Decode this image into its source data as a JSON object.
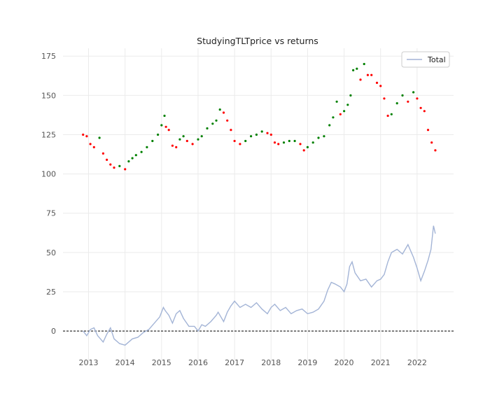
{
  "chart_data": {
    "type": "line",
    "title": "StudyingTLTprice vs returns",
    "xlabel": "",
    "ylabel": "",
    "x_ticks": [
      "2013",
      "2014",
      "2015",
      "2016",
      "2017",
      "2018",
      "2019",
      "2020",
      "2021",
      "2022"
    ],
    "y_ticks": [
      0,
      25,
      50,
      75,
      100,
      125,
      150,
      175
    ],
    "xlim": [
      2012.3,
      2023.0
    ],
    "ylim": [
      -20,
      180
    ],
    "grid": true,
    "legend": {
      "position": "top-right",
      "entries": [
        "Total"
      ]
    },
    "reference_line": {
      "y": 0,
      "style": "dashed",
      "color": "#000000"
    },
    "colors": {
      "total": "#a3b4d6",
      "up": "#008000",
      "down": "#ff0000"
    },
    "price_series": {
      "x": [
        2012.85,
        2012.95,
        2013.05,
        2013.15,
        2013.3,
        2013.4,
        2013.5,
        2013.6,
        2013.7,
        2013.85,
        2014.0,
        2014.1,
        2014.2,
        2014.3,
        2014.45,
        2014.6,
        2014.75,
        2014.9,
        2015.0,
        2015.08,
        2015.12,
        2015.2,
        2015.3,
        2015.4,
        2015.5,
        2015.6,
        2015.7,
        2015.85,
        2016.0,
        2016.1,
        2016.25,
        2016.4,
        2016.5,
        2016.6,
        2016.7,
        2016.8,
        2016.9,
        2017.0,
        2017.15,
        2017.3,
        2017.45,
        2017.6,
        2017.75,
        2017.9,
        2018.0,
        2018.1,
        2018.2,
        2018.35,
        2018.5,
        2018.65,
        2018.8,
        2018.9,
        2019.0,
        2019.15,
        2019.3,
        2019.45,
        2019.6,
        2019.7,
        2019.8,
        2019.9,
        2020.0,
        2020.1,
        2020.18,
        2020.25,
        2020.35,
        2020.45,
        2020.55,
        2020.65,
        2020.75,
        2020.9,
        2021.0,
        2021.1,
        2021.2,
        2021.3,
        2021.45,
        2021.6,
        2021.75,
        2021.9,
        2022.0,
        2022.1,
        2022.2,
        2022.3,
        2022.4,
        2022.5
      ],
      "y": [
        125,
        124,
        119,
        117,
        123,
        113,
        109,
        106,
        104,
        105,
        103,
        108,
        110,
        112,
        114,
        117,
        121,
        125,
        131,
        137,
        130,
        128,
        118,
        117,
        122,
        124,
        121,
        119,
        122,
        124,
        129,
        132,
        134,
        141,
        139,
        134,
        128,
        121,
        119,
        121,
        124,
        125,
        127,
        126,
        125,
        120,
        119,
        120,
        121,
        121,
        119,
        115,
        117,
        120,
        123,
        124,
        131,
        136,
        146,
        138,
        140,
        144,
        150,
        166,
        167,
        160,
        170,
        163,
        163,
        158,
        156,
        148,
        137,
        138,
        145,
        150,
        146,
        152,
        148,
        142,
        140,
        128,
        120,
        115
      ],
      "direction": [
        "down",
        "down",
        "down",
        "down",
        "up",
        "down",
        "down",
        "down",
        "down",
        "up",
        "down",
        "up",
        "up",
        "up",
        "up",
        "up",
        "up",
        "up",
        "up",
        "up",
        "down",
        "down",
        "down",
        "down",
        "up",
        "up",
        "down",
        "down",
        "up",
        "up",
        "up",
        "up",
        "up",
        "up",
        "down",
        "down",
        "down",
        "down",
        "down",
        "up",
        "up",
        "up",
        "up",
        "down",
        "down",
        "down",
        "down",
        "up",
        "up",
        "up",
        "down",
        "down",
        "up",
        "up",
        "up",
        "up",
        "up",
        "up",
        "up",
        "down",
        "up",
        "up",
        "up",
        "up",
        "up",
        "down",
        "up",
        "down",
        "down",
        "down",
        "down",
        "down",
        "down",
        "up",
        "up",
        "up",
        "down",
        "up",
        "down",
        "down",
        "down",
        "down",
        "down",
        "down"
      ]
    },
    "series": [
      {
        "name": "Total",
        "x": [
          2012.85,
          2012.95,
          2013.05,
          2013.15,
          2013.25,
          2013.4,
          2013.5,
          2013.6,
          2013.7,
          2013.85,
          2014.0,
          2014.1,
          2014.2,
          2014.35,
          2014.5,
          2014.65,
          2014.8,
          2014.95,
          2015.05,
          2015.1,
          2015.2,
          2015.3,
          2015.4,
          2015.5,
          2015.6,
          2015.75,
          2015.9,
          2016.0,
          2016.1,
          2016.2,
          2016.35,
          2016.5,
          2016.55,
          2016.7,
          2016.8,
          2016.9,
          2017.0,
          2017.15,
          2017.3,
          2017.45,
          2017.6,
          2017.75,
          2017.9,
          2018.0,
          2018.1,
          2018.25,
          2018.4,
          2018.55,
          2018.7,
          2018.85,
          2019.0,
          2019.15,
          2019.3,
          2019.45,
          2019.55,
          2019.65,
          2019.75,
          2019.9,
          2020.0,
          2020.08,
          2020.15,
          2020.22,
          2020.3,
          2020.45,
          2020.6,
          2020.75,
          2020.9,
          2021.0,
          2021.1,
          2021.2,
          2021.3,
          2021.45,
          2021.6,
          2021.75,
          2021.9,
          2022.0,
          2022.1,
          2022.2,
          2022.3,
          2022.38,
          2022.45,
          2022.5
        ],
        "values": [
          0,
          -3,
          1,
          2,
          -3,
          -7,
          -2,
          2,
          -5,
          -8,
          -9,
          -7,
          -5,
          -4,
          -1,
          1,
          5,
          9,
          15,
          13,
          10,
          5,
          11,
          13,
          8,
          3,
          3,
          0,
          4,
          3,
          6,
          10,
          12,
          6,
          12,
          16,
          19,
          15,
          17,
          15,
          18,
          14,
          11,
          15,
          17,
          13,
          15,
          11,
          13,
          14,
          11,
          12,
          14,
          19,
          26,
          31,
          30,
          28,
          25,
          30,
          41,
          44,
          37,
          32,
          33,
          28,
          32,
          33,
          36,
          44,
          50,
          52,
          49,
          55,
          47,
          40,
          32,
          38,
          45,
          52,
          67,
          62
        ]
      }
    ]
  }
}
